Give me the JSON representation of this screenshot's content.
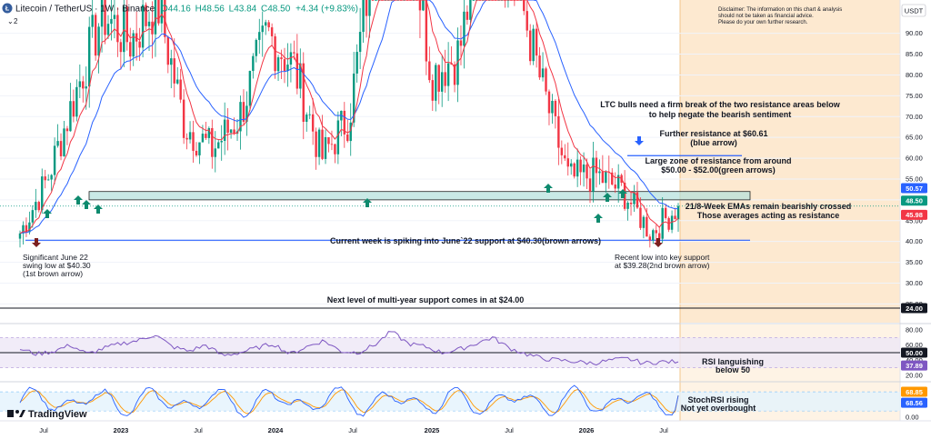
{
  "header": {
    "symbol": "Litecoin / TetherUS · 1W · Binance",
    "ohlc_prefix_o": "O",
    "open": "44.16",
    "ohlc_prefix_h": "H",
    "high": "48.56",
    "ohlc_prefix_l": "L",
    "low": "43.84",
    "ohlc_prefix_c": "C",
    "close": "48.50",
    "change": "+4.34 (+9.83%)",
    "indicator_count": "2",
    "currency": "USDT"
  },
  "disclaimer": [
    "Disclaimer: The information on this chart & analysis",
    "should not be taken as financial advice.",
    "Please do your own further research."
  ],
  "brand": {
    "name": "TradingView"
  },
  "colors": {
    "up": "#089981",
    "down": "#f23645",
    "ema_fast": "#f23645",
    "ema_slow": "#2962ff",
    "zone": "#b2dfdb",
    "support": "#2962ff",
    "brown_arrow": "#7b1f1f",
    "green_arrow": "#0e8a6e",
    "blue_arrow": "#2962ff",
    "future_bg": "#fde9d0",
    "rsi": "#7e57c2",
    "stoch_k": "#2962ff",
    "stoch_d": "#ff9800"
  },
  "annotations": {
    "bulls_1": "LTC bulls need a firm break of the two resistance areas below",
    "bulls_2": "to help negate the bearish sentiment",
    "further_1": "Further resistance at $60.61",
    "further_2": "(blue arrow)",
    "zone_1": "Large zone of resistance from around",
    "zone_2": "$50.00 - $52.00(green arrows)",
    "ema_1": "21/8-Week EMAs remain bearishly crossed",
    "ema_2": "Those averages acting as resistance",
    "spike": "Current week is spiking into June`22 support at $40.30(brown arrows)",
    "june_1": "Significant June 22",
    "june_2": "swing low at $40.30",
    "june_3": "(1st brown arrow)",
    "recent_1": "Recent low into key support",
    "recent_2": "at $39.28(2nd brown arrow)",
    "next": "Next level of multi-year support comes in at $24.00",
    "rsi_1": "RSI languishing",
    "rsi_2": "below 50",
    "stoch_1": "StochRSI rising",
    "stoch_2": "Not yet overbought"
  },
  "price_badges": [
    {
      "name": "ema-slow-badge",
      "value": "50.57",
      "color": "#2962ff"
    },
    {
      "name": "last-price-badge",
      "value": "48.50",
      "color": "#089981"
    },
    {
      "name": "ema-fast-badge",
      "value": "45.98",
      "color": "#f23645"
    },
    {
      "name": "support-24-badge",
      "value": "24.00",
      "color": "#131722"
    }
  ],
  "rsi_badges": [
    {
      "name": "rsi-50-badge",
      "value": "50.00",
      "color": "#131722"
    },
    {
      "name": "rsi-value-badge",
      "value": "37.89",
      "color": "#7e57c2"
    }
  ],
  "stoch_badges": [
    {
      "name": "stoch-d-badge",
      "value": "68.85",
      "color": "#ff9800"
    },
    {
      "name": "stoch-k-badge",
      "value": "68.56",
      "color": "#2962ff"
    }
  ],
  "chart_data": {
    "type": "candlestick",
    "price_axis": {
      "ticks": [
        "90.00",
        "85.00",
        "80.00",
        "75.00",
        "70.00",
        "65.00",
        "60.00",
        "55.00",
        "50.00",
        "45.00",
        "40.00",
        "35.00",
        "30.00",
        "25.00"
      ],
      "range": [
        20.5,
        98
      ]
    },
    "time_axis": {
      "ticks": [
        "Jul",
        "2023",
        "Jul",
        "2024",
        "Jul",
        "2025",
        "Jul",
        "2026",
        "Jul"
      ]
    },
    "levels": {
      "zone_low": 50.0,
      "zone_high": 52.0,
      "june22_support": 40.3,
      "further_resistance": 60.61,
      "recent_low": 39.28,
      "multi_year_support": 24.0,
      "last_close": 48.5
    },
    "candles_weekly_close_anchors": [
      {
        "t": "2022-06",
        "close": 42
      },
      {
        "t": "2022-09",
        "close": 55
      },
      {
        "t": "2022-11",
        "close": 75
      },
      {
        "t": "2023-02",
        "close": 95
      },
      {
        "t": "2023-04",
        "close": 88
      },
      {
        "t": "2023-07",
        "close": 98
      },
      {
        "t": "2023-08",
        "close": 68
      },
      {
        "t": "2023-10",
        "close": 62
      },
      {
        "t": "2023-12",
        "close": 70
      },
      {
        "t": "2024-03",
        "close": 90
      },
      {
        "t": "2024-05",
        "close": 82
      },
      {
        "t": "2024-08",
        "close": 60
      },
      {
        "t": "2024-10",
        "close": 70
      },
      {
        "t": "2024-12",
        "close": 115
      },
      {
        "t": "2025-02",
        "close": 125
      },
      {
        "t": "2025-04",
        "close": 80
      },
      {
        "t": "2025-06",
        "close": 85
      },
      {
        "t": "2025-08",
        "close": 120
      },
      {
        "t": "2025-10",
        "close": 105
      },
      {
        "t": "2025-12",
        "close": 78
      },
      {
        "t": "2026-02",
        "close": 55
      },
      {
        "t": "2026-04",
        "close": 56
      },
      {
        "t": "2026-05",
        "close": 52
      },
      {
        "t": "2026-06",
        "close": 42
      },
      {
        "t": "2026-07",
        "close": 48.5
      }
    ],
    "rsi": {
      "ticks": [
        "80.00",
        "60.00",
        "40.00",
        "20.00"
      ],
      "levels": [
        70,
        50,
        30
      ],
      "range": [
        14,
        86
      ],
      "last": 37.89,
      "anchors": [
        55,
        48,
        52,
        60,
        48,
        56,
        62,
        66,
        74,
        58,
        52,
        60,
        46,
        50,
        56,
        62,
        48,
        58,
        66,
        52,
        50,
        60,
        78,
        62,
        58,
        50,
        54,
        62,
        70,
        56,
        48,
        42,
        40,
        38,
        36,
        40,
        42,
        36,
        38,
        37.89
      ]
    },
    "stoch_rsi": {
      "ticks": [
        "50.00",
        "0.00"
      ],
      "levels": [
        80,
        20
      ],
      "range": [
        -8,
        106
      ],
      "last_k": 68.56,
      "last_d": 68.85
    }
  }
}
